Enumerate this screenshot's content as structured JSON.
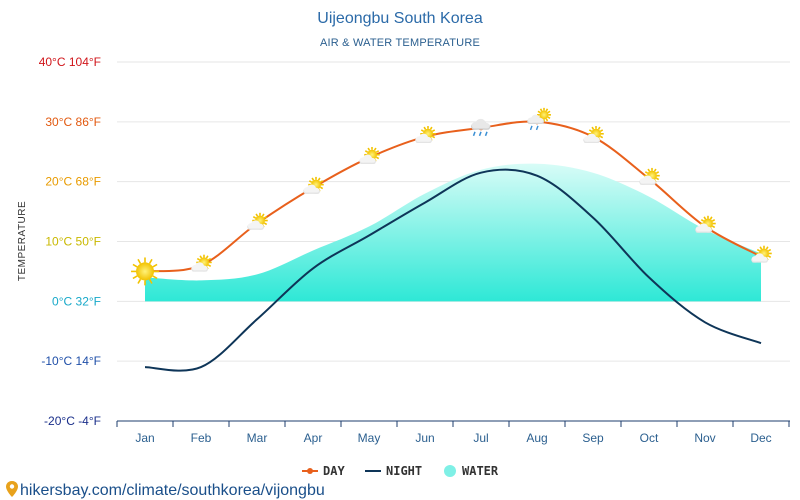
{
  "chart_data": {
    "type": "line",
    "title": "Uijeongbu South Korea",
    "subtitle": "AIR & WATER TEMPERATURE",
    "ylabel": "TEMPERATURE",
    "ylim": [
      -20,
      40
    ],
    "yticks": [
      {
        "value": 40,
        "label": "40°C 104°F",
        "color": "#d0151a"
      },
      {
        "value": 30,
        "label": "30°C 86°F",
        "color": "#e2590f"
      },
      {
        "value": 20,
        "label": "20°C 68°F",
        "color": "#e89b00"
      },
      {
        "value": 10,
        "label": "10°C 50°F",
        "color": "#c9b800"
      },
      {
        "value": 0,
        "label": "0°C 32°F",
        "color": "#18a9c9"
      },
      {
        "value": -10,
        "label": "-10°C 14°F",
        "color": "#1f4fa8"
      },
      {
        "value": -20,
        "label": "-20°C -4°F",
        "color": "#1a2f8a"
      }
    ],
    "categories": [
      "Jan",
      "Feb",
      "Mar",
      "Apr",
      "May",
      "Jun",
      "Jul",
      "Aug",
      "Sep",
      "Oct",
      "Nov",
      "Dec"
    ],
    "series": [
      {
        "name": "DAY",
        "color": "#e8601c",
        "values": [
          5,
          6,
          13,
          19,
          24,
          27.5,
          29,
          30,
          27.5,
          20.5,
          12.5,
          7.5
        ],
        "icons": [
          "sun-icon",
          "sun-cloud-icon",
          "sun-cloud-icon",
          "sun-cloud-icon",
          "sun-cloud-icon",
          "sun-cloud-icon",
          "rain-cloud-icon",
          "sun-rain-cloud-icon",
          "sun-cloud-icon",
          "sun-cloud-icon",
          "sun-cloud-icon",
          "sun-cloud-icon"
        ]
      },
      {
        "name": "NIGHT",
        "color": "#0e3558",
        "values": [
          -11,
          -11,
          -3,
          5.5,
          11,
          16.5,
          21.5,
          21,
          14,
          4,
          -3.5,
          -7
        ]
      },
      {
        "name": "WATER",
        "color": "#7ff0e6",
        "values": [
          4,
          3.5,
          4.5,
          8.5,
          12.5,
          18,
          22,
          23,
          21.5,
          17.5,
          12,
          8
        ]
      }
    ]
  },
  "source": "hikersbay.com/climate/southkorea/vijongbu",
  "colors": {
    "water_top": "#c9fbf4",
    "water_bottom": "#2ee6d6",
    "axis": "#1c3d6e"
  }
}
